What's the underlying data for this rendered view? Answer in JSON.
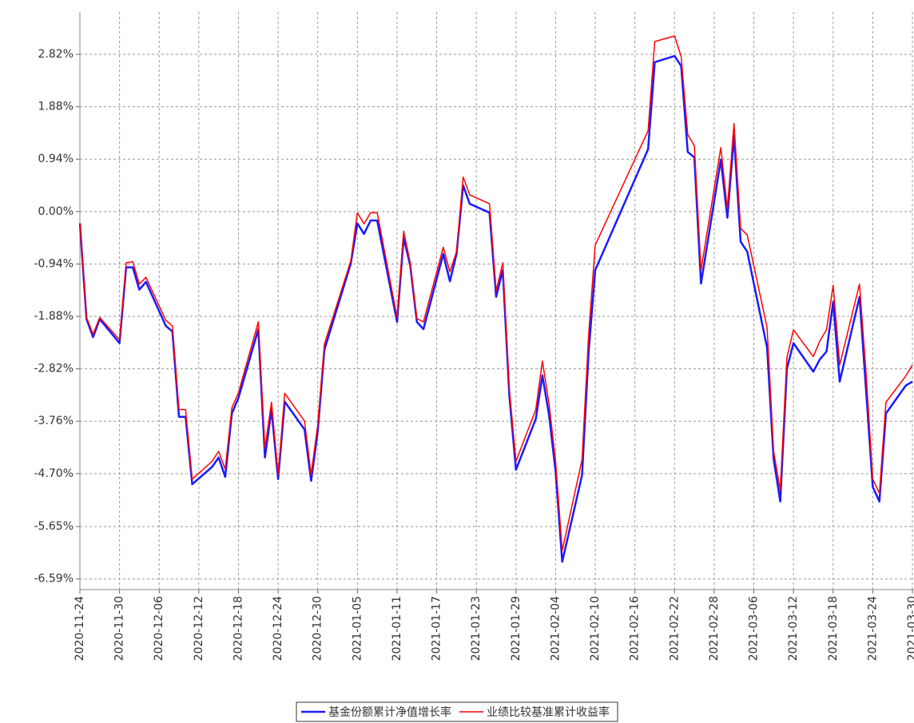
{
  "chart_data": {
    "type": "line",
    "x": [
      "2020-11-24",
      "2020-11-25",
      "2020-11-26",
      "2020-11-27",
      "2020-11-30",
      "2020-12-01",
      "2020-12-02",
      "2020-12-03",
      "2020-12-04",
      "2020-12-07",
      "2020-12-08",
      "2020-12-09",
      "2020-12-10",
      "2020-12-11",
      "2020-12-14",
      "2020-12-15",
      "2020-12-16",
      "2020-12-17",
      "2020-12-18",
      "2020-12-21",
      "2020-12-22",
      "2020-12-23",
      "2020-12-24",
      "2020-12-25",
      "2020-12-28",
      "2020-12-29",
      "2020-12-30",
      "2020-12-31",
      "2021-01-04",
      "2021-01-05",
      "2021-01-06",
      "2021-01-07",
      "2021-01-08",
      "2021-01-11",
      "2021-01-12",
      "2021-01-13",
      "2021-01-14",
      "2021-01-15",
      "2021-01-18",
      "2021-01-19",
      "2021-01-20",
      "2021-01-21",
      "2021-01-22",
      "2021-01-25",
      "2021-01-26",
      "2021-01-27",
      "2021-01-28",
      "2021-01-29",
      "2021-02-01",
      "2021-02-02",
      "2021-02-03",
      "2021-02-04",
      "2021-02-05",
      "2021-02-08",
      "2021-02-09",
      "2021-02-10",
      "2021-02-18",
      "2021-02-19",
      "2021-02-22",
      "2021-02-23",
      "2021-02-24",
      "2021-02-25",
      "2021-02-26",
      "2021-03-01",
      "2021-03-02",
      "2021-03-03",
      "2021-03-04",
      "2021-03-05",
      "2021-03-08",
      "2021-03-09",
      "2021-03-10",
      "2021-03-11",
      "2021-03-12",
      "2021-03-15",
      "2021-03-16",
      "2021-03-17",
      "2021-03-18",
      "2021-03-19",
      "2021-03-22",
      "2021-03-23",
      "2021-03-24",
      "2021-03-25",
      "2021-03-26",
      "2021-03-29",
      "2021-03-30"
    ],
    "series": [
      {
        "name": "基金份额累计净值增长率",
        "color": "#1a1aff",
        "values": [
          -0.21,
          -1.93,
          -2.25,
          -1.93,
          -2.36,
          -1.0,
          -1.0,
          -1.4,
          -1.26,
          -2.05,
          -2.15,
          -3.68,
          -3.68,
          -4.89,
          -4.58,
          -4.41,
          -4.76,
          -3.62,
          -3.34,
          -2.11,
          -4.41,
          -3.55,
          -4.8,
          -3.41,
          -3.91,
          -4.83,
          -3.94,
          -2.48,
          -0.93,
          -0.21,
          -0.4,
          -0.16,
          -0.16,
          -1.98,
          -0.47,
          -0.97,
          -1.98,
          -2.11,
          -0.76,
          -1.25,
          -0.76,
          0.47,
          0.14,
          -0.02,
          -1.53,
          -1.05,
          -3.3,
          -4.63,
          -3.72,
          -2.94,
          -3.65,
          -4.66,
          -6.28,
          -4.73,
          -2.51,
          -1.05,
          1.12,
          2.68,
          2.79,
          2.61,
          1.07,
          0.97,
          -1.29,
          0.93,
          -0.11,
          1.36,
          -0.54,
          -0.72,
          -2.44,
          -4.44,
          -5.2,
          -2.82,
          -2.36,
          -2.87,
          -2.65,
          -2.51,
          -1.62,
          -3.05,
          -1.53,
          -3.22,
          -4.94,
          -5.2,
          -3.62,
          -3.12,
          -3.05
        ]
      },
      {
        "name": "业绩比较基准累计收益率",
        "color": "#ff0000",
        "values": [
          -0.21,
          -1.9,
          -2.2,
          -1.9,
          -2.3,
          -0.92,
          -0.9,
          -1.3,
          -1.18,
          -1.95,
          -2.05,
          -3.55,
          -3.55,
          -4.8,
          -4.48,
          -4.3,
          -4.62,
          -3.52,
          -3.25,
          -1.98,
          -4.25,
          -3.42,
          -4.72,
          -3.26,
          -3.76,
          -4.72,
          -3.82,
          -2.38,
          -0.88,
          -0.02,
          -0.22,
          -0.02,
          -0.02,
          -1.9,
          -0.35,
          -0.92,
          -1.92,
          -1.98,
          -0.64,
          -1.08,
          -0.72,
          0.62,
          0.3,
          0.14,
          -1.42,
          -0.92,
          -3.18,
          -4.48,
          -3.55,
          -2.68,
          -3.45,
          -4.48,
          -6.08,
          -4.45,
          -2.2,
          -0.6,
          1.45,
          3.05,
          3.15,
          2.78,
          1.38,
          1.18,
          -1.05,
          1.15,
          0.05,
          1.58,
          -0.3,
          -0.42,
          -2.08,
          -4.3,
          -5.0,
          -2.62,
          -2.12,
          -2.6,
          -2.32,
          -2.12,
          -1.32,
          -2.75,
          -1.3,
          -2.92,
          -4.8,
          -5.05,
          -3.42,
          -2.95,
          -2.75
        ]
      }
    ],
    "xlim": [
      "2020-11-24",
      "2021-03-30"
    ],
    "xticks": [
      "2020-11-24",
      "2020-11-30",
      "2020-12-06",
      "2020-12-12",
      "2020-12-18",
      "2020-12-24",
      "2020-12-30",
      "2021-01-05",
      "2021-01-11",
      "2021-01-17",
      "2021-01-23",
      "2021-01-29",
      "2021-02-04",
      "2021-02-10",
      "2021-02-16",
      "2021-02-22",
      "2021-02-28",
      "2021-03-06",
      "2021-03-12",
      "2021-03-18",
      "2021-03-24",
      "2021-03-30"
    ],
    "ylim": [
      -6.78,
      3.58
    ],
    "yticks": [
      {
        "value": 2.82,
        "label": "2.82%"
      },
      {
        "value": 1.88,
        "label": "1.88%"
      },
      {
        "value": 0.94,
        "label": "0.94%"
      },
      {
        "value": 0,
        "label": "0.00%"
      },
      {
        "value": -0.94,
        "label": "-0.94%"
      },
      {
        "value": -1.88,
        "label": "-1.88%"
      },
      {
        "value": -2.82,
        "label": "-2.82%"
      },
      {
        "value": -3.76,
        "label": "-3.76%"
      },
      {
        "value": -4.7,
        "label": "-4.70%"
      },
      {
        "value": -5.65,
        "label": "-5.65%"
      },
      {
        "value": -6.59,
        "label": "-6.59%"
      }
    ],
    "grid": true,
    "legend": "bottom"
  }
}
